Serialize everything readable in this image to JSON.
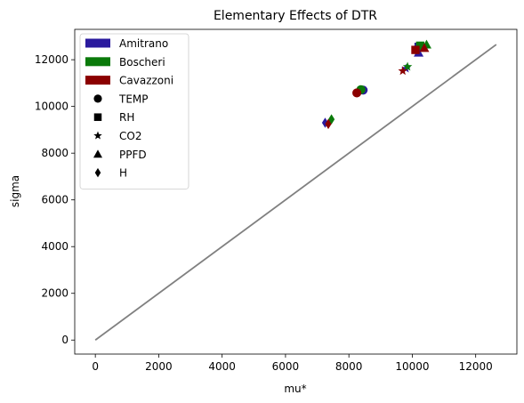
{
  "chart_data": {
    "type": "scatter",
    "title": "Elementary Effects of DTR",
    "xlabel": "mu*",
    "ylabel": "sigma",
    "xlim": [
      -650,
      13300
    ],
    "ylim": [
      -600,
      13300
    ],
    "xticks": [
      0,
      2000,
      4000,
      6000,
      8000,
      10000,
      12000
    ],
    "yticks": [
      0,
      2000,
      4000,
      6000,
      8000,
      10000,
      12000
    ],
    "grid": false,
    "legend_position": "top-left",
    "reference_line": {
      "x": [
        0,
        12650
      ],
      "y": [
        0,
        12650
      ],
      "color": "#808080"
    },
    "models": [
      {
        "name": "Amitrano",
        "color": "#2a1a9e"
      },
      {
        "name": "Boscheri",
        "color": "#0a7a0a"
      },
      {
        "name": "Cavazzoni",
        "color": "#8b0000"
      }
    ],
    "parameters": [
      {
        "name": "TEMP",
        "marker": "circle"
      },
      {
        "name": "RH",
        "marker": "square"
      },
      {
        "name": "CO2",
        "marker": "star"
      },
      {
        "name": "PPFD",
        "marker": "triangle"
      },
      {
        "name": "H",
        "marker": "diamond"
      }
    ],
    "series": [
      {
        "name": "Amitrano",
        "points": [
          {
            "param": "TEMP",
            "x": 8450,
            "y": 10700
          },
          {
            "param": "RH",
            "x": 10200,
            "y": 12550
          },
          {
            "param": "CO2",
            "x": 9800,
            "y": 11620
          },
          {
            "param": "PPFD",
            "x": 10200,
            "y": 12300
          },
          {
            "param": "H",
            "x": 7250,
            "y": 9300
          }
        ]
      },
      {
        "name": "Boscheri",
        "points": [
          {
            "param": "TEMP",
            "x": 8380,
            "y": 10720
          },
          {
            "param": "RH",
            "x": 10250,
            "y": 12600
          },
          {
            "param": "CO2",
            "x": 9850,
            "y": 11700
          },
          {
            "param": "PPFD",
            "x": 10450,
            "y": 12650
          },
          {
            "param": "H",
            "x": 7450,
            "y": 9450
          }
        ]
      },
      {
        "name": "Cavazzoni",
        "points": [
          {
            "param": "TEMP",
            "x": 8250,
            "y": 10580
          },
          {
            "param": "RH",
            "x": 10100,
            "y": 12420
          },
          {
            "param": "CO2",
            "x": 9700,
            "y": 11520
          },
          {
            "param": "PPFD",
            "x": 10380,
            "y": 12500
          },
          {
            "param": "H",
            "x": 7350,
            "y": 9250
          }
        ]
      }
    ]
  }
}
